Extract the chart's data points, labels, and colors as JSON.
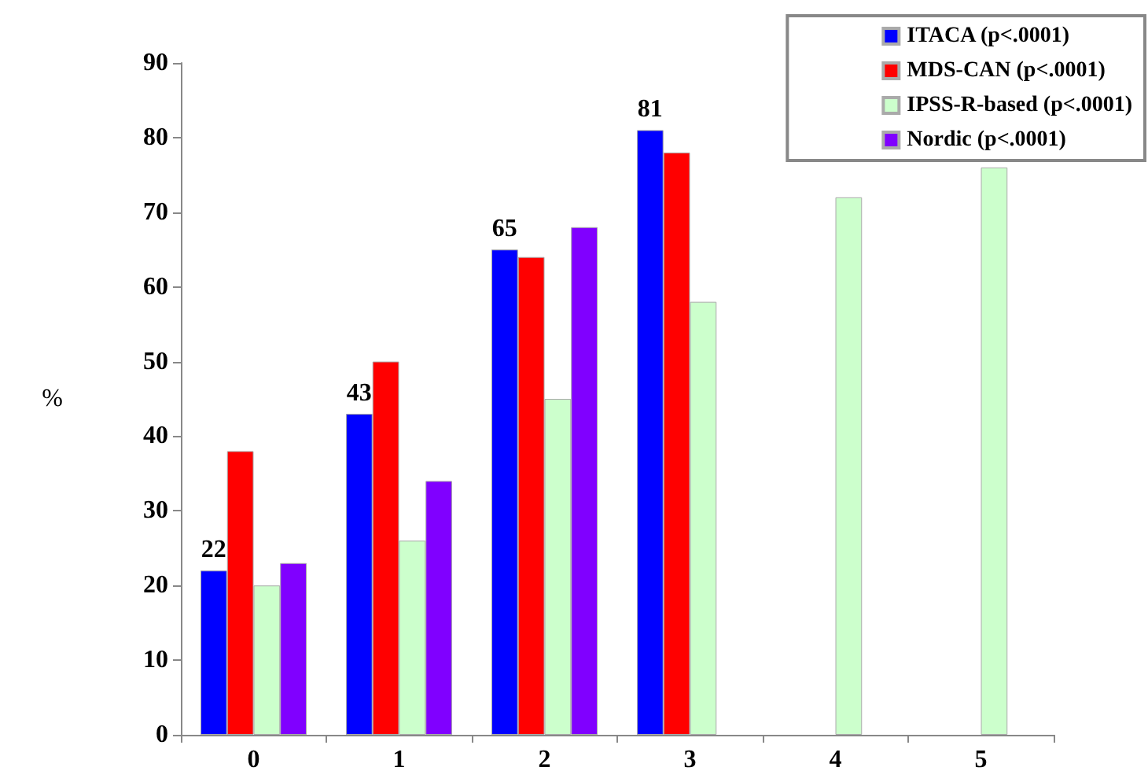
{
  "chart_data": {
    "type": "bar",
    "ylabel": "%",
    "categories": [
      "0",
      "1",
      "2",
      "3",
      "4",
      "5"
    ],
    "series": [
      {
        "name": "ITACA (p<.0001)",
        "color": "#0000ff",
        "values": [
          22,
          43,
          65,
          81,
          null,
          null
        ],
        "value_labels": [
          "22",
          "43",
          "65",
          "81",
          null,
          null
        ]
      },
      {
        "name": "MDS-CAN (p<.0001)",
        "color": "#ff0000",
        "values": [
          38,
          50,
          64,
          78,
          null,
          null
        ]
      },
      {
        "name": "IPSS-R-based (p<.0001)",
        "color": "#ccffcc",
        "values": [
          20,
          26,
          45,
          58,
          72,
          76
        ]
      },
      {
        "name": "Nordic (p<.0001)",
        "color": "#8000ff",
        "values": [
          23,
          34,
          68,
          null,
          null,
          null
        ]
      }
    ],
    "ylim": [
      0,
      90
    ],
    "yticks": [
      0,
      10,
      20,
      30,
      40,
      50,
      60,
      70,
      80,
      90
    ],
    "grid": false,
    "legend": "top right"
  }
}
